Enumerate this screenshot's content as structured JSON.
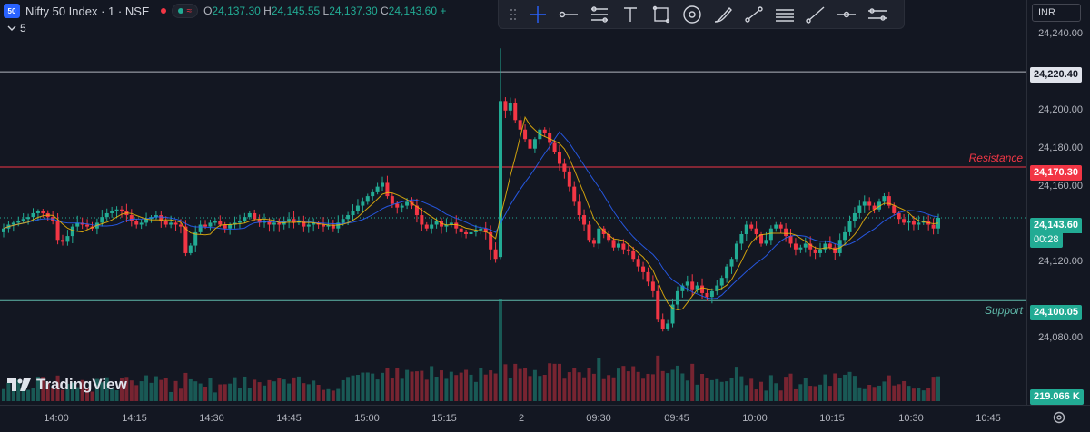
{
  "legend": {
    "symbol_badge": "50",
    "title": "Nifty 50 Index · 1 · NSE",
    "pill_dot_label": "",
    "open_label": "O",
    "open": "24,137.30",
    "high_label": "H",
    "high": "24,145.55",
    "low_label": "L",
    "low": "24,137.30",
    "close_label": "C",
    "close": "24,143.60",
    "change_trunc": "+",
    "indicator_count": "5"
  },
  "currency": "INR",
  "watermark": "TradingView",
  "toolbar": {
    "tools": [
      "crosshair-tool",
      "horizontal-ray-tool",
      "fib-retracement-tool",
      "text-tool",
      "rectangle-tool",
      "measure-tool",
      "brush-tool",
      "price-range-tool",
      "long-position-tool",
      "trend-line-tool",
      "horizontal-line-tool",
      "parallel-channel-tool"
    ]
  },
  "price_axis": {
    "ticks": [
      "24,240.00",
      "24,200.00",
      "24,180.00",
      "24,160.00",
      "24,120.00",
      "24,080.00"
    ],
    "tick_values": [
      24240,
      24200,
      24180,
      24160,
      24120,
      24080
    ],
    "labels": {
      "level_top": "24,220.40",
      "resistance": "24,170.30",
      "current": "24,143.60",
      "countdown": "00:28",
      "support": "24,100.05",
      "volume": "219.066 K"
    }
  },
  "time_axis": {
    "labels": [
      "14:00",
      "14:15",
      "14:30",
      "14:45",
      "15:00",
      "15:15",
      "2",
      "09:30",
      "09:45",
      "10:00",
      "10:15",
      "10:30",
      "10:45"
    ]
  },
  "annotations": {
    "resistance": "Resistance",
    "support": "Support"
  },
  "colors": {
    "up": "#22ab94",
    "down": "#f23645",
    "ma_fast": "#f0b90b",
    "ma_slow": "#2962ff",
    "resistance_line": "#f23645",
    "support_line": "#5fb8a9",
    "level_line": "#b2b5be"
  },
  "chart_data": {
    "type": "candlestick",
    "symbol": "Nifty 50 Index",
    "interval": "1",
    "exchange": "NSE",
    "x_labels": [
      "14:00",
      "14:15",
      "14:30",
      "14:45",
      "15:00",
      "15:15",
      "2",
      "09:30",
      "09:45",
      "10:00",
      "10:15",
      "10:30",
      "10:45"
    ],
    "ylim": [
      24060,
      24245
    ],
    "horizontal_levels": [
      24220.4,
      24170.3,
      24100.05
    ],
    "level_labels": {
      "24170.30": "Resistance",
      "24100.05": "Support"
    },
    "last_price": 24143.6,
    "closes": [
      24138,
      24140,
      24141,
      24142,
      24143,
      24144,
      24146,
      24147,
      24146,
      24144,
      24142,
      24132,
      24131,
      24134,
      24139,
      24141,
      24140,
      24139,
      24138,
      24141,
      24144,
      24146,
      24147,
      24148,
      24147,
      24145,
      24142,
      24140,
      24141,
      24143,
      24144,
      24145,
      24142,
      24140,
      24141,
      24140,
      24139,
      24125,
      24129,
      24136,
      24140,
      24139,
      24141,
      24142,
      24140,
      24138,
      24140,
      24141,
      24142,
      24144,
      24146,
      24143,
      24141,
      24142,
      24140,
      24141,
      24140,
      24142,
      24143,
      24141,
      24142,
      24139,
      24140,
      24141,
      24140,
      24139,
      24140,
      24138,
      24141,
      24143,
      24145,
      24147,
      24150,
      24152,
      24155,
      24157,
      24160,
      24162,
      24155,
      24151,
      24149,
      24150,
      24152,
      24150,
      24145,
      24140,
      24138,
      24140,
      24142,
      24139,
      24140,
      24141,
      24138,
      24136,
      24135,
      24136,
      24137,
      24138,
      24136,
      24127,
      24122,
      24205,
      24200,
      24204,
      24195,
      24190,
      24185,
      24180,
      24185,
      24190,
      24188,
      24183,
      24178,
      24172,
      24168,
      24160,
      24152,
      24145,
      24140,
      24132,
      24130,
      24138,
      24135,
      24132,
      24128,
      24130,
      24127,
      24126,
      24122,
      24118,
      24115,
      24110,
      24105,
      24090,
      24085,
      24088,
      24098,
      24105,
      24108,
      24110,
      24106,
      24108,
      24104,
      24102,
      24105,
      24108,
      24112,
      24118,
      24122,
      24130,
      24135,
      24140,
      24138,
      24135,
      24130,
      24132,
      24138,
      24140,
      24138,
      24134,
      24130,
      24127,
      24128,
      24130,
      24127,
      24125,
      24127,
      24130,
      24128,
      24125,
      24132,
      24136,
      24142,
      24146,
      24150,
      24152,
      24150,
      24148,
      24152,
      24155,
      24150,
      24146,
      24143,
      24141,
      24142,
      24140,
      24141,
      24142,
      24140,
      24138,
      24143.6
    ],
    "volume_last": "219.066 K"
  }
}
